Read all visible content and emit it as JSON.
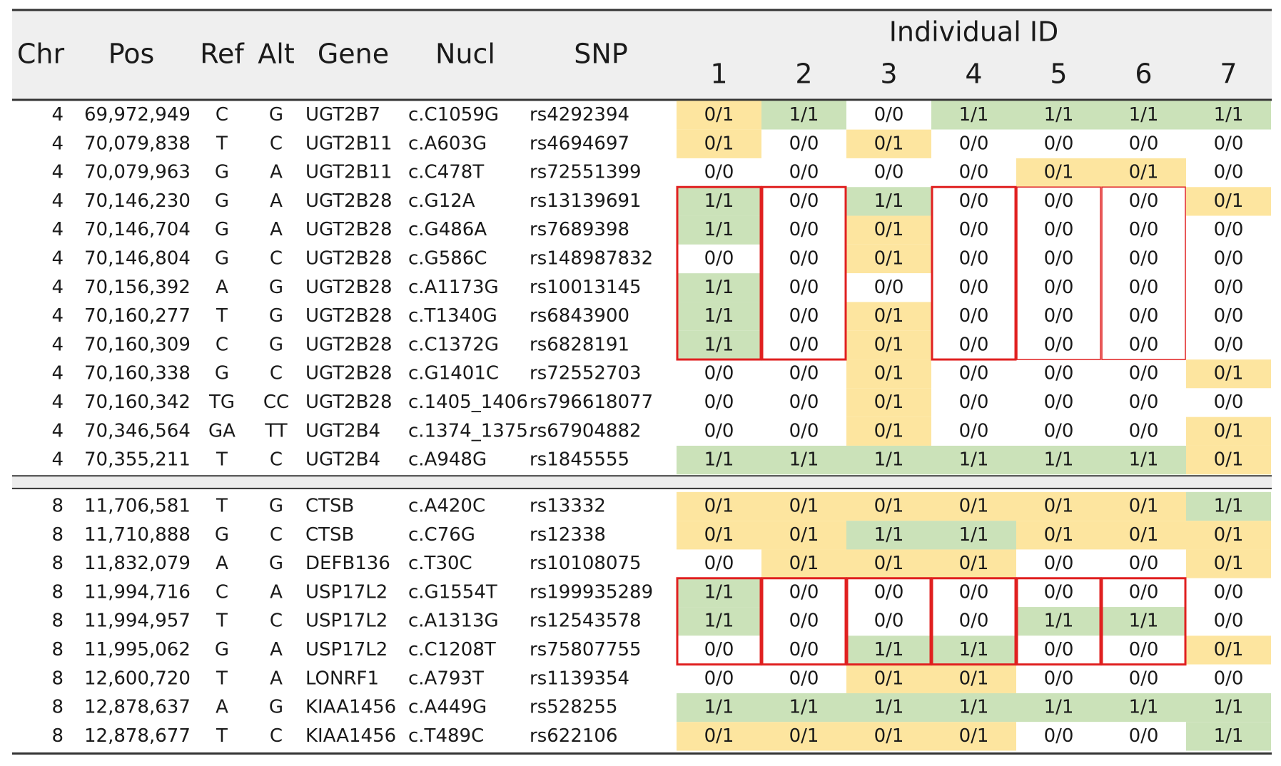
{
  "table": {
    "headers": [
      "Chr",
      "Pos",
      "Ref",
      "Alt",
      "Gene",
      "Nucl",
      "SNP"
    ],
    "group_header": "Individual ID",
    "individuals": [
      "1",
      "2",
      "3",
      "4",
      "5",
      "6",
      "7"
    ],
    "genotype_colors": {
      "0/1": "#fde59f",
      "1/1": "#cbe2b9",
      "0/0": "#ffffff"
    },
    "sections": [
      {
        "rows": [
          [
            "4",
            "69,972,949",
            "C",
            "G",
            "UGT2B7",
            "c.C1059G",
            "rs4292394",
            [
              "0/1",
              "1/1",
              "0/0",
              "1/1",
              "1/1",
              "1/1",
              "1/1"
            ]
          ],
          [
            "4",
            "70,079,838",
            "T",
            "C",
            "UGT2B11",
            "c.A603G",
            "rs4694697",
            [
              "0/1",
              "0/0",
              "0/1",
              "0/0",
              "0/0",
              "0/0",
              "0/0"
            ]
          ],
          [
            "4",
            "70,079,963",
            "G",
            "A",
            "UGT2B11",
            "c.C478T",
            "rs72551399",
            [
              "0/0",
              "0/0",
              "0/0",
              "0/0",
              "0/1",
              "0/1",
              "0/0"
            ]
          ],
          [
            "4",
            "70,146,230",
            "G",
            "A",
            "UGT2B28",
            "c.G12A",
            "rs13139691",
            [
              "1/1",
              "0/0",
              "1/1",
              "0/0",
              "0/0",
              "0/0",
              "0/1"
            ]
          ],
          [
            "4",
            "70,146,704",
            "G",
            "A",
            "UGT2B28",
            "c.G486A",
            "rs7689398",
            [
              "1/1",
              "0/0",
              "0/1",
              "0/0",
              "0/0",
              "0/0",
              "0/0"
            ]
          ],
          [
            "4",
            "70,146,804",
            "G",
            "C",
            "UGT2B28",
            "c.G586C",
            "rs148987832",
            [
              "0/0",
              "0/0",
              "0/1",
              "0/0",
              "0/0",
              "0/0",
              "0/0"
            ]
          ],
          [
            "4",
            "70,156,392",
            "A",
            "G",
            "UGT2B28",
            "c.A1173G",
            "rs10013145",
            [
              "1/1",
              "0/0",
              "0/0",
              "0/0",
              "0/0",
              "0/0",
              "0/0"
            ]
          ],
          [
            "4",
            "70,160,277",
            "T",
            "G",
            "UGT2B28",
            "c.T1340G",
            "rs6843900",
            [
              "1/1",
              "0/0",
              "0/1",
              "0/0",
              "0/0",
              "0/0",
              "0/0"
            ]
          ],
          [
            "4",
            "70,160,309",
            "C",
            "G",
            "UGT2B28",
            "c.C1372G",
            "rs6828191",
            [
              "1/1",
              "0/0",
              "0/1",
              "0/0",
              "0/0",
              "0/0",
              "0/0"
            ]
          ],
          [
            "4",
            "70,160,338",
            "G",
            "C",
            "UGT2B28",
            "c.G1401C",
            "rs72552703",
            [
              "0/0",
              "0/0",
              "0/1",
              "0/0",
              "0/0",
              "0/0",
              "0/1"
            ]
          ],
          [
            "4",
            "70,160,342",
            "TG",
            "CC",
            "UGT2B28",
            "c.1405_1406",
            "rs796618077",
            [
              "0/0",
              "0/0",
              "0/1",
              "0/0",
              "0/0",
              "0/0",
              "0/0"
            ]
          ],
          [
            "4",
            "70,346,564",
            "GA",
            "TT",
            "UGT2B4",
            "c.1374_1375.",
            "rs67904882",
            [
              "0/0",
              "0/0",
              "0/1",
              "0/0",
              "0/0",
              "0/0",
              "0/1"
            ]
          ],
          [
            "4",
            "70,355,211",
            "T",
            "C",
            "UGT2B4",
            "c.A948G",
            "rs1845555",
            [
              "1/1",
              "1/1",
              "1/1",
              "1/1",
              "1/1",
              "1/1",
              "0/1"
            ]
          ]
        ]
      },
      {
        "rows": [
          [
            "8",
            "11,706,581",
            "T",
            "G",
            "CTSB",
            "c.A420C",
            "rs13332",
            [
              "0/1",
              "0/1",
              "0/1",
              "0/1",
              "0/1",
              "0/1",
              "1/1"
            ]
          ],
          [
            "8",
            "11,710,888",
            "G",
            "C",
            "CTSB",
            "c.C76G",
            "rs12338",
            [
              "0/1",
              "0/1",
              "1/1",
              "1/1",
              "0/1",
              "0/1",
              "0/1"
            ]
          ],
          [
            "8",
            "11,832,079",
            "A",
            "G",
            "DEFB136",
            "c.T30C",
            "rs10108075",
            [
              "0/0",
              "0/1",
              "0/1",
              "0/1",
              "0/0",
              "0/0",
              "0/1"
            ]
          ],
          [
            "8",
            "11,994,716",
            "C",
            "A",
            "USP17L2",
            "c.G1554T",
            "rs199935289",
            [
              "1/1",
              "0/0",
              "0/0",
              "0/0",
              "0/0",
              "0/0",
              "0/0"
            ]
          ],
          [
            "8",
            "11,994,957",
            "T",
            "C",
            "USP17L2",
            "c.A1313G",
            "rs12543578",
            [
              "1/1",
              "0/0",
              "0/0",
              "0/0",
              "1/1",
              "1/1",
              "0/0"
            ]
          ],
          [
            "8",
            "11,995,062",
            "G",
            "A",
            "USP17L2",
            "c.C1208T",
            "rs75807755",
            [
              "0/0",
              "0/0",
              "1/1",
              "1/1",
              "0/0",
              "0/0",
              "0/1"
            ]
          ],
          [
            "8",
            "12,600,720",
            "T",
            "A",
            "LONRF1",
            "c.A793T",
            "rs1139354",
            [
              "0/0",
              "0/0",
              "0/1",
              "0/1",
              "0/0",
              "0/0",
              "0/0"
            ]
          ],
          [
            "8",
            "12,878,637",
            "A",
            "G",
            "KIAA1456",
            "c.A449G",
            "rs528255",
            [
              "1/1",
              "1/1",
              "1/1",
              "1/1",
              "1/1",
              "1/1",
              "1/1"
            ]
          ],
          [
            "8",
            "12,878,677",
            "T",
            "C",
            "KIAA1456",
            "c.T489C",
            "rs622106",
            [
              "0/1",
              "0/1",
              "0/1",
              "0/1",
              "0/0",
              "0/0",
              "1/1"
            ]
          ]
        ]
      }
    ]
  }
}
